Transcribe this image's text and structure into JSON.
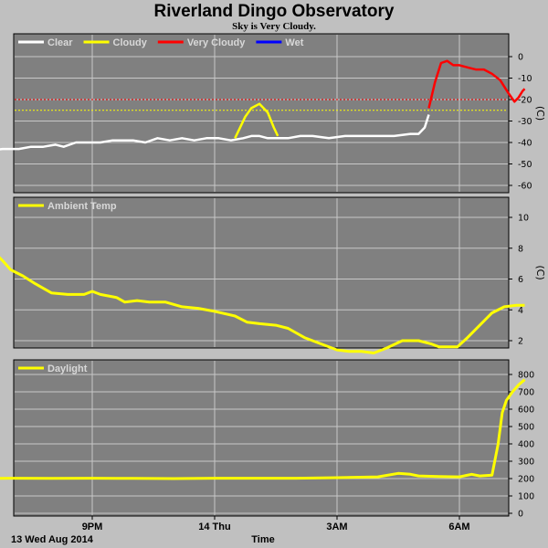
{
  "title": "Riverland Dingo Observatory",
  "subtitle": "Sky is Very Cloudy.",
  "footer": {
    "date": "13 Wed Aug 2014",
    "xlabel": "Time"
  },
  "colors": {
    "background": "#c0c0c0",
    "panel": "#808080",
    "grid": "#c8c8c8",
    "clear": "#ffffff",
    "cloudy": "#ffff00",
    "very_cloudy": "#ff0000",
    "wet": "#0000ff"
  },
  "chart_data": [
    {
      "type": "line",
      "title": "",
      "x_ticks": [
        "9PM",
        "14 Thu",
        "3AM",
        "6AM"
      ],
      "x_tick_hours": [
        3,
        6,
        9,
        12
      ],
      "x_range_hours": [
        -1.2,
        13.7
      ],
      "ylim": [
        -60,
        5
      ],
      "yticks": [
        0,
        -10,
        -20,
        -30,
        -40,
        -50,
        -60
      ],
      "ylabel": "(C)",
      "grid": true,
      "legend": {
        "placement": "top-left",
        "entries": [
          "Clear",
          "Cloudy",
          "Very Cloudy",
          "Wet"
        ]
      },
      "thresholds": [
        -20,
        -25
      ],
      "series": [
        {
          "name": "Clear",
          "x": [
            -1.2,
            -0.8,
            -0.5,
            -0.3,
            0,
            0.4,
            0.8,
            1.2,
            1.5,
            1.8,
            2.1,
            2.3,
            2.6,
            2.8,
            3,
            3.2,
            3.5,
            3.8,
            4,
            4.3,
            4.6,
            4.9,
            5.2,
            5.5,
            5.8,
            6.1,
            6.4,
            6.7,
            6.9,
            7.1,
            7.3,
            7.55,
            7.8,
            8.1,
            8.4,
            8.8,
            9.2,
            9.6,
            10,
            10.4,
            10.8,
            11.0,
            11.15,
            11.25
          ],
          "values": [
            -45,
            -45,
            -45,
            -44,
            -44,
            -44,
            -43,
            -43,
            -42,
            -42,
            -41,
            -42,
            -40,
            -40,
            -40,
            -40,
            -39,
            -39,
            -39,
            -40,
            -38,
            -39,
            -38,
            -39,
            -38,
            -38,
            -39,
            -38,
            -37,
            -37,
            -38,
            -38,
            -38,
            -37,
            -37,
            -38,
            -37,
            -37,
            -37,
            -37,
            -36,
            -36,
            -33,
            -27
          ]
        },
        {
          "name": "Cloudy",
          "x": [
            6.5,
            6.6,
            6.75,
            6.9,
            7.1,
            7.3,
            7.45,
            7.55
          ],
          "values": [
            -38,
            -34,
            -28,
            -24,
            -22,
            -26,
            -33,
            -37
          ]
        },
        {
          "name": "Very Cloudy",
          "x": [
            11.25,
            11.4,
            11.55,
            11.7,
            11.85,
            12.0,
            12.2,
            12.4,
            12.6,
            12.8,
            13.0,
            13.2,
            13.35,
            13.45,
            13.55,
            13.6
          ],
          "values": [
            -24,
            -12,
            -3,
            -2,
            -4,
            -4,
            -5,
            -6,
            -6,
            -8,
            -11,
            -17,
            -21,
            -19,
            -16,
            -15
          ]
        },
        {
          "name": "Wet",
          "x": [],
          "values": []
        }
      ]
    },
    {
      "type": "line",
      "title": "",
      "x_range_hours": [
        -1.2,
        13.7
      ],
      "ylim": [
        0,
        11
      ],
      "yticks": [
        10,
        8,
        6,
        4,
        2
      ],
      "ylabel": "(C)",
      "grid": true,
      "legend": {
        "placement": "top-left",
        "entries": [
          "Ambient Temp"
        ]
      },
      "series": [
        {
          "name": "Ambient Temp",
          "x": [
            -1.2,
            -0.8,
            -0.5,
            -0.2,
            0.2,
            0.5,
            0.8,
            1.0,
            1.3,
            1.6,
            2.0,
            2.4,
            2.8,
            3.0,
            3.2,
            3.6,
            3.8,
            4.1,
            4.4,
            4.8,
            5.2,
            5.6,
            6.0,
            6.5,
            6.8,
            7.1,
            7.5,
            7.8,
            8.2,
            8.6,
            9.0,
            9.3,
            9.6,
            9.9,
            10.2,
            10.6,
            11.0,
            11.3,
            11.5,
            11.7,
            11.95,
            12.2,
            12.5,
            12.8,
            13.1,
            13.4,
            13.6
          ],
          "values": [
            10.0,
            9.6,
            9.2,
            9.0,
            8.6,
            8.0,
            7.2,
            6.6,
            6.2,
            5.7,
            5.1,
            5.0,
            5.0,
            5.2,
            5.0,
            4.8,
            4.5,
            4.6,
            4.5,
            4.5,
            4.2,
            4.1,
            3.9,
            3.6,
            3.2,
            3.1,
            3.0,
            2.8,
            2.2,
            1.8,
            1.4,
            1.3,
            1.3,
            1.2,
            1.5,
            2.0,
            2.0,
            1.8,
            1.6,
            1.6,
            1.6,
            2.2,
            3.0,
            3.8,
            4.2,
            4.3,
            4.3
          ]
        }
      ]
    },
    {
      "type": "line",
      "title": "",
      "x_range_hours": [
        -1.2,
        13.7
      ],
      "ylim": [
        0,
        820
      ],
      "yticks": [
        800,
        700,
        600,
        500,
        400,
        300,
        200,
        100,
        0
      ],
      "grid": true,
      "legend": {
        "placement": "top-left",
        "entries": [
          "Daylight"
        ]
      },
      "series": [
        {
          "name": "Daylight",
          "x": [
            -1.2,
            0,
            1,
            2,
            3,
            4,
            5,
            6,
            7,
            8,
            9,
            10,
            10.5,
            10.8,
            11.0,
            11.5,
            12.0,
            12.3,
            12.5,
            12.8,
            12.95,
            13.05,
            13.15,
            13.3,
            13.45,
            13.6
          ],
          "values": [
            200,
            200,
            202,
            201,
            202,
            201,
            200,
            202,
            202,
            202,
            205,
            210,
            230,
            225,
            215,
            212,
            210,
            225,
            215,
            220,
            400,
            580,
            650,
            700,
            740,
            770
          ]
        }
      ]
    }
  ]
}
